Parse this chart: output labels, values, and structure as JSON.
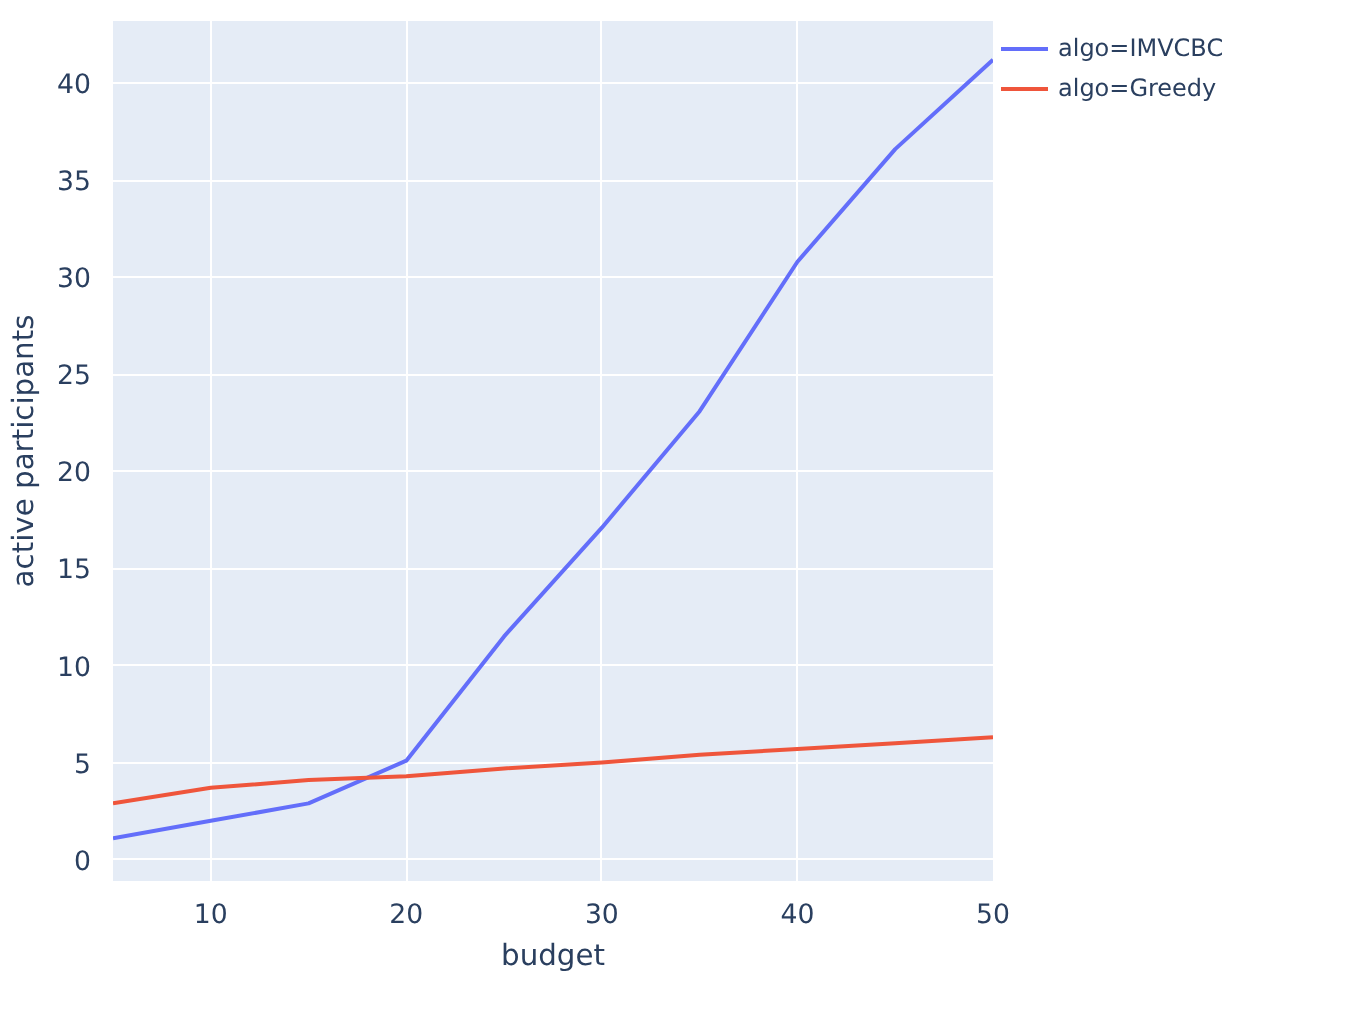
{
  "chart_data": {
    "type": "line",
    "xlabel": "budget",
    "ylabel": "active participants",
    "x": [
      5,
      10,
      15,
      20,
      25,
      30,
      35,
      40,
      45,
      50
    ],
    "series": [
      {
        "name": "algo=IMVCBC",
        "color": "#636efa",
        "values": [
          1.1,
          2.0,
          2.9,
          5.1,
          11.5,
          17.1,
          23.1,
          30.8,
          36.6,
          41.2
        ]
      },
      {
        "name": "algo=Greedy",
        "color": "#ef553b",
        "values": [
          2.9,
          3.7,
          4.1,
          4.3,
          4.7,
          5.0,
          5.4,
          5.7,
          6.0,
          6.3
        ]
      }
    ],
    "xlim": [
      5,
      50
    ],
    "ylim": [
      -1.1,
      43.2
    ],
    "xticks": [
      10,
      20,
      30,
      40,
      50
    ],
    "yticks": [
      0,
      5,
      10,
      15,
      20,
      25,
      30,
      35,
      40
    ],
    "grid": true,
    "legend": "top right",
    "marker": "none",
    "line_style": "solid"
  }
}
